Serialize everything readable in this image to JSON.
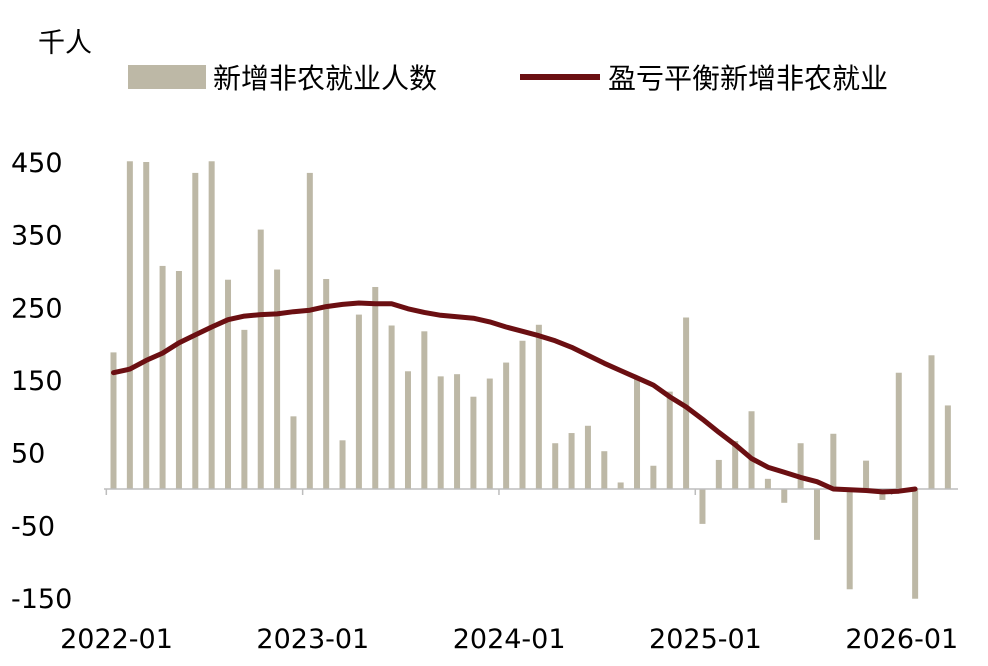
{
  "chart_data": {
    "type": "bar+line",
    "unit_label": "千人",
    "legend": [
      {
        "label": "新增非农就业人数",
        "color": "#bdb8a6",
        "kind": "bar"
      },
      {
        "label": "盈亏平衡新增非农就业",
        "color": "#6b0f12",
        "kind": "line"
      }
    ],
    "ylim": [
      -150,
      450
    ],
    "y_ticks": [
      450,
      350,
      250,
      150,
      50,
      -50,
      -150
    ],
    "x_ticks": [
      "2022-01",
      "2023-01",
      "2024-01",
      "2025-01",
      "2026-01"
    ],
    "months": [
      "2022-01",
      "2022-02",
      "2022-03",
      "2022-04",
      "2022-05",
      "2022-06",
      "2022-07",
      "2022-08",
      "2022-09",
      "2022-10",
      "2022-11",
      "2022-12",
      "2023-01",
      "2023-02",
      "2023-03",
      "2023-04",
      "2023-05",
      "2023-06",
      "2023-07",
      "2023-08",
      "2023-09",
      "2023-10",
      "2023-11",
      "2023-12",
      "2024-01",
      "2024-02",
      "2024-03",
      "2024-04",
      "2024-05",
      "2024-06",
      "2024-07",
      "2024-08",
      "2024-09",
      "2024-10",
      "2024-11",
      "2024-12",
      "2025-01",
      "2025-02",
      "2025-03",
      "2025-04",
      "2025-05",
      "2025-06",
      "2025-07",
      "2025-08",
      "2025-09",
      "2025-10",
      "2025-11",
      "2025-12",
      "2026-01",
      "2026-02",
      "2026-03",
      "2026-04",
      "2026-05"
    ],
    "series": [
      {
        "name": "新增非农就业人数",
        "values": [
          188,
          451,
          450,
          307,
          300,
          435,
          451,
          288,
          219,
          357,
          302,
          100,
          435,
          289,
          67,
          240,
          278,
          225,
          162,
          217,
          155,
          158,
          127,
          152,
          174,
          204,
          226,
          63,
          77,
          87,
          52,
          9,
          153,
          32,
          134,
          236,
          -48,
          40,
          66,
          107,
          14,
          -19,
          63,
          -70,
          76,
          -138,
          39,
          -15,
          160,
          -151,
          184,
          115,
          null
        ]
      },
      {
        "name": "盈亏平衡新增非农就业",
        "values": [
          160,
          165,
          177,
          187,
          201,
          212,
          223,
          233,
          238,
          240,
          241,
          244,
          246,
          251,
          254,
          256,
          255,
          255,
          248,
          243,
          239,
          237,
          235,
          230,
          223,
          217,
          211,
          204,
          195,
          184,
          173,
          163,
          153,
          143,
          127,
          113,
          96,
          78,
          61,
          42,
          30,
          23,
          16,
          10,
          0,
          -1,
          -2,
          -4,
          -3,
          0,
          null,
          null,
          null
        ]
      }
    ]
  }
}
